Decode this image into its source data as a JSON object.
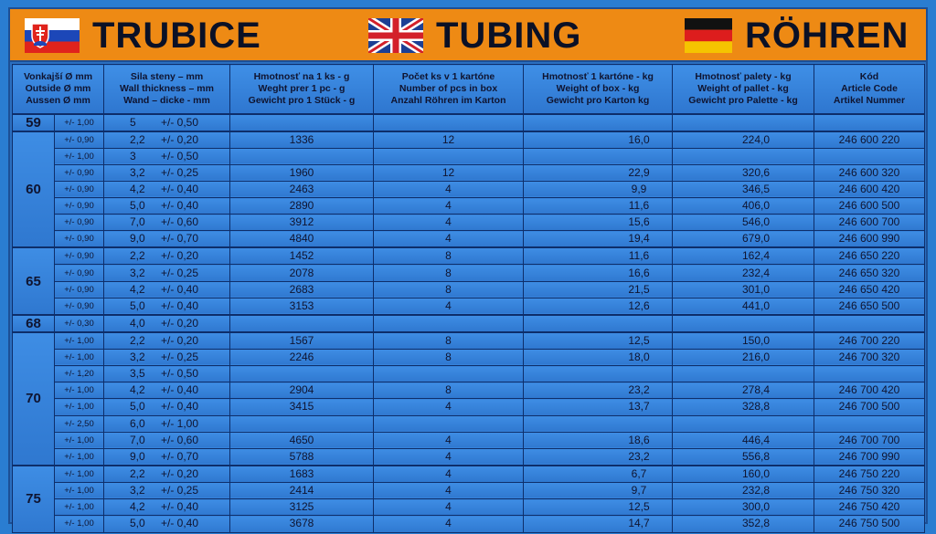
{
  "banner": [
    {
      "flag": "flag-slovakia",
      "title": "TRUBICE"
    },
    {
      "flag": "flag-united-kingdom",
      "title": "TUBING"
    },
    {
      "flag": "flag-germany",
      "title": "RÖHREN"
    }
  ],
  "headers": [
    "Vonkajší Ø mm\nOutside Ø mm\nAussen Ø mm",
    "Sila steny – mm\nWall thickness – mm\nWand – dicke - mm",
    "Hmotnosť na 1 ks - g\nWeght prer 1 pc - g\nGewicht pro 1 Stück - g",
    "Počet ks v 1 kartóne\nNumber of pcs in box\nAnzahl Röhren im Karton",
    "Hmotnosť  1 kartóne - kg\nWeight of box - kg\nGewicht pro Karton kg",
    "Hmotnosť palety - kg\nWeight of pallet - kg\nGewicht pro Palette - kg",
    "Kód\nArticle Code\nArtikel Nummer"
  ],
  "groups": [
    {
      "diameter": "59",
      "rows": [
        {
          "tol": "+/- 1,00",
          "wall": "5",
          "wtol": "+/- 0,50",
          "piece": "",
          "pcs": "",
          "box": "",
          "pallet": "",
          "code": ""
        }
      ]
    },
    {
      "diameter": "60",
      "rows": [
        {
          "tol": "+/- 0,90",
          "wall": "2,2",
          "wtol": "+/- 0,20",
          "piece": "1336",
          "pcs": "12",
          "box": "16,0",
          "pallet": "224,0",
          "code": "246 600 220"
        },
        {
          "tol": "+/- 1,00",
          "wall": "3",
          "wtol": "+/- 0,50",
          "piece": "",
          "pcs": "",
          "box": "",
          "pallet": "",
          "code": ""
        },
        {
          "tol": "+/- 0,90",
          "wall": "3,2",
          "wtol": "+/- 0,25",
          "piece": "1960",
          "pcs": "12",
          "box": "22,9",
          "pallet": "320,6",
          "code": "246 600 320"
        },
        {
          "tol": "+/- 0,90",
          "wall": "4,2",
          "wtol": "+/- 0,40",
          "piece": "2463",
          "pcs": "4",
          "box": "9,9",
          "pallet": "346,5",
          "code": "246 600 420"
        },
        {
          "tol": "+/- 0,90",
          "wall": "5,0",
          "wtol": "+/- 0,40",
          "piece": "2890",
          "pcs": "4",
          "box": "11,6",
          "pallet": "406,0",
          "code": "246 600 500"
        },
        {
          "tol": "+/- 0,90",
          "wall": "7,0",
          "wtol": "+/- 0,60",
          "piece": "3912",
          "pcs": "4",
          "box": "15,6",
          "pallet": "546,0",
          "code": "246 600 700"
        },
        {
          "tol": "+/- 0,90",
          "wall": "9,0",
          "wtol": "+/- 0,70",
          "piece": "4840",
          "pcs": "4",
          "box": "19,4",
          "pallet": "679,0",
          "code": "246 600 990"
        }
      ]
    },
    {
      "diameter": "65",
      "rows": [
        {
          "tol": "+/- 0,90",
          "wall": "2,2",
          "wtol": "+/- 0,20",
          "piece": "1452",
          "pcs": "8",
          "box": "11,6",
          "pallet": "162,4",
          "code": "246 650 220"
        },
        {
          "tol": "+/- 0,90",
          "wall": "3,2",
          "wtol": "+/- 0,25",
          "piece": "2078",
          "pcs": "8",
          "box": "16,6",
          "pallet": "232,4",
          "code": "246 650 320"
        },
        {
          "tol": "+/- 0,90",
          "wall": "4,2",
          "wtol": "+/- 0,40",
          "piece": "2683",
          "pcs": "8",
          "box": "21,5",
          "pallet": "301,0",
          "code": "246 650 420"
        },
        {
          "tol": "+/- 0,90",
          "wall": "5,0",
          "wtol": "+/- 0,40",
          "piece": "3153",
          "pcs": "4",
          "box": "12,6",
          "pallet": "441,0",
          "code": "246 650 500"
        }
      ]
    },
    {
      "diameter": "68",
      "rows": [
        {
          "tol": "+/- 0,30",
          "wall": "4,0",
          "wtol": "+/- 0,20",
          "piece": "",
          "pcs": "",
          "box": "",
          "pallet": "",
          "code": ""
        }
      ]
    },
    {
      "diameter": "70",
      "rows": [
        {
          "tol": "+/- 1,00",
          "wall": "2,2",
          "wtol": "+/- 0,20",
          "piece": "1567",
          "pcs": "8",
          "box": "12,5",
          "pallet": "150,0",
          "code": "246 700 220"
        },
        {
          "tol": "+/- 1,00",
          "wall": "3,2",
          "wtol": "+/- 0,25",
          "piece": "2246",
          "pcs": "8",
          "box": "18,0",
          "pallet": "216,0",
          "code": "246 700 320"
        },
        {
          "tol": "+/- 1,20",
          "wall": "3,5",
          "wtol": "+/- 0,50",
          "piece": "",
          "pcs": "",
          "box": "",
          "pallet": "",
          "code": ""
        },
        {
          "tol": "+/- 1,00",
          "wall": "4,2",
          "wtol": "+/- 0,40",
          "piece": "2904",
          "pcs": "8",
          "box": "23,2",
          "pallet": "278,4",
          "code": "246 700 420"
        },
        {
          "tol": "+/- 1,00",
          "wall": "5,0",
          "wtol": "+/- 0,40",
          "piece": "3415",
          "pcs": "4",
          "box": "13,7",
          "pallet": "328,8",
          "code": "246 700 500"
        },
        {
          "tol": "+/- 2,50",
          "wall": "6,0",
          "wtol": "+/- 1,00",
          "piece": "",
          "pcs": "",
          "box": "",
          "pallet": "",
          "code": ""
        },
        {
          "tol": "+/- 1,00",
          "wall": "7,0",
          "wtol": "+/- 0,60",
          "piece": "4650",
          "pcs": "4",
          "box": "18,6",
          "pallet": "446,4",
          "code": "246 700 700"
        },
        {
          "tol": "+/- 1,00",
          "wall": "9,0",
          "wtol": "+/- 0,70",
          "piece": "5788",
          "pcs": "4",
          "box": "23,2",
          "pallet": "556,8",
          "code": "246 700 990"
        }
      ]
    },
    {
      "diameter": "75",
      "rows": [
        {
          "tol": "+/- 1,00",
          "wall": "2,2",
          "wtol": "+/- 0,20",
          "piece": "1683",
          "pcs": "4",
          "box": "6,7",
          "pallet": "160,0",
          "code": "246 750 220"
        },
        {
          "tol": "+/- 1,00",
          "wall": "3,2",
          "wtol": "+/- 0,25",
          "piece": "2414",
          "pcs": "4",
          "box": "9,7",
          "pallet": "232,8",
          "code": "246 750 320"
        },
        {
          "tol": "+/- 1,00",
          "wall": "4,2",
          "wtol": "+/- 0,40",
          "piece": "3125",
          "pcs": "4",
          "box": "12,5",
          "pallet": "300,0",
          "code": "246 750 420"
        },
        {
          "tol": "+/- 1,00",
          "wall": "5,0",
          "wtol": "+/- 0,40",
          "piece": "3678",
          "pcs": "4",
          "box": "14,7",
          "pallet": "352,8",
          "code": "246 750 500"
        }
      ]
    }
  ]
}
